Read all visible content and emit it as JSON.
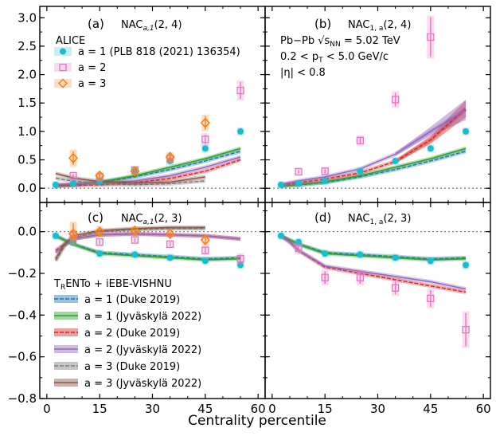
{
  "figure": {
    "xlabel": "Centrality percentile"
  },
  "panels_text": {
    "a": {
      "tag": "(a)",
      "obs_main": "NAC",
      "obs_sub": "a,1",
      "obs_args": "(2, 4)"
    },
    "b": {
      "tag": "(b)",
      "obs_main": "NAC",
      "obs_sub": "1, a",
      "obs_args": "(2, 4)",
      "info1a": "Pb−Pb ",
      "info1b": "√s",
      "info1c": "NN",
      "info1d": " = 5.02 TeV",
      "info2": "0.2 < p",
      "info2sub": "T",
      "info2b": " < 5.0 GeV/c",
      "info3": "|η| < 0.8"
    },
    "c": {
      "tag": "(c)",
      "obs_main": "NAC",
      "obs_sub": "a,1",
      "obs_args": "(2, 3)"
    },
    "d": {
      "tag": "(d)",
      "obs_main": "NAC",
      "obs_sub": "1, a",
      "obs_args": "(2, 3)"
    }
  },
  "legend_data": {
    "title": "ALICE",
    "entries": [
      {
        "label": "a = 1 (PLB 818 (2021) 136354)",
        "marker": "circle",
        "color": "#17becf"
      },
      {
        "label": "a = 2",
        "marker": "square",
        "color": "#e377c2"
      },
      {
        "label": "a = 3",
        "marker": "diamond",
        "color": "#ff7f0e"
      }
    ]
  },
  "legend_model": {
    "title_a": "T",
    "title_sub": "R",
    "title_b": "ENTo + iEBE-VISHNU",
    "entries": [
      {
        "label": "a = 1 (Duke 2019)",
        "color": "#1f77b4",
        "style": "dashed"
      },
      {
        "label": "a = 1 (Jyväskylä 2022)",
        "color": "#2ca02c",
        "style": "solid"
      },
      {
        "label": "a = 2 (Duke 2019)",
        "color": "#d62728",
        "style": "dashed"
      },
      {
        "label": "a = 2 (Jyväskylä 2022)",
        "color": "#9467bd",
        "style": "solid"
      },
      {
        "label": "a = 3 (Duke 2019)",
        "color": "#7f7f7f",
        "style": "dashed"
      },
      {
        "label": "a = 3 (Jyväskylä 2022)",
        "color": "#8c564b",
        "style": "solid"
      }
    ]
  },
  "colors": {
    "a1": "#17becf",
    "a2": "#e377c2",
    "a3": "#ff7f0e",
    "ref": "#808080"
  },
  "chart_data": [
    {
      "panel": "a",
      "type": "line+errorbar",
      "xlim": [
        -2,
        62
      ],
      "ylim": [
        -0.25,
        3.2
      ],
      "xticks": [
        0,
        15,
        30,
        45,
        60
      ],
      "yticks": [
        0.0,
        0.5,
        1.0,
        1.5,
        2.0,
        2.5,
        3.0
      ],
      "ytick_labels": [
        "0.0",
        "0.5",
        "1.0",
        "1.5",
        "2.0",
        "2.5",
        "3.0"
      ],
      "data_series": [
        {
          "name": "a = 1",
          "marker": "circle",
          "color": "#17becf",
          "x": [
            2.5,
            7.5,
            15,
            25,
            35,
            45,
            55
          ],
          "y": [
            0.06,
            0.08,
            0.13,
            0.3,
            0.48,
            0.7,
            1.0
          ],
          "err": [
            0.01,
            0.01,
            0.01,
            0.02,
            0.02,
            0.02,
            0.03
          ]
        },
        {
          "name": "a = 2",
          "marker": "square",
          "color": "#e377c2",
          "x": [
            7.5,
            15,
            25,
            35,
            45,
            55
          ],
          "y": [
            0.22,
            0.2,
            0.32,
            0.52,
            0.86,
            1.72
          ],
          "err": [
            0.03,
            0.03,
            0.03,
            0.05,
            0.08,
            0.15
          ]
        },
        {
          "name": "a = 3",
          "marker": "diamond",
          "color": "#ff7f0e",
          "x": [
            7.5,
            15,
            25,
            35,
            45
          ],
          "y": [
            0.53,
            0.22,
            0.3,
            0.55,
            1.15
          ],
          "err": [
            0.12,
            0.05,
            0.05,
            0.06,
            0.12
          ]
        }
      ],
      "model_series": [
        {
          "name": "a = 1 (Duke 2019)",
          "color": "#1f77b4",
          "style": "dashed",
          "x": [
            2.5,
            5,
            7.5,
            15,
            25,
            35,
            45,
            55
          ],
          "y": [
            0.04,
            0.05,
            0.06,
            0.1,
            0.2,
            0.33,
            0.48,
            0.65
          ]
        },
        {
          "name": "a = 1 (Jyväskylä 2022)",
          "color": "#2ca02c",
          "style": "solid",
          "x": [
            2.5,
            5,
            7.5,
            15,
            25,
            35,
            45,
            55
          ],
          "y": [
            0.04,
            0.05,
            0.06,
            0.11,
            0.22,
            0.37,
            0.52,
            0.7
          ]
        },
        {
          "name": "a = 2 (Duke 2019)",
          "color": "#d62728",
          "style": "dashed",
          "x": [
            2.5,
            5,
            7.5,
            15,
            25,
            35,
            45,
            55
          ],
          "y": [
            0.05,
            0.05,
            0.05,
            0.06,
            0.1,
            0.17,
            0.3,
            0.5
          ]
        },
        {
          "name": "a = 2 (Jyväskylä 2022)",
          "color": "#9467bd",
          "style": "solid",
          "x": [
            2.5,
            5,
            7.5,
            15,
            25,
            35,
            45,
            55
          ],
          "y": [
            0.07,
            0.07,
            0.08,
            0.09,
            0.13,
            0.22,
            0.37,
            0.55
          ]
        },
        {
          "name": "a = 3 (Duke 2019)",
          "color": "#7f7f7f",
          "style": "dashed",
          "x": [
            2.5,
            5,
            7.5,
            15,
            25,
            35,
            45
          ],
          "y": [
            0.18,
            0.15,
            0.13,
            0.08,
            0.06,
            0.08,
            0.13
          ]
        },
        {
          "name": "a = 3 (Jyväskylä 2022)",
          "color": "#8c564b",
          "style": "solid",
          "x": [
            2.5,
            5,
            7.5,
            15,
            25,
            35,
            45
          ],
          "y": [
            0.26,
            0.22,
            0.18,
            0.12,
            0.09,
            0.11,
            0.2
          ]
        }
      ]
    },
    {
      "panel": "b",
      "type": "line+errorbar",
      "xlim": [
        -2,
        62
      ],
      "ylim": [
        -0.25,
        3.2
      ],
      "xticks": [
        0,
        15,
        30,
        45,
        60
      ],
      "yticks": [
        0.0,
        0.5,
        1.0,
        1.5,
        2.0,
        2.5,
        3.0
      ],
      "data_series": [
        {
          "name": "a = 1",
          "marker": "circle",
          "color": "#17becf",
          "x": [
            2.5,
            7.5,
            15,
            25,
            35,
            45,
            55
          ],
          "y": [
            0.06,
            0.08,
            0.13,
            0.3,
            0.48,
            0.7,
            1.0
          ],
          "err": [
            0.01,
            0.01,
            0.01,
            0.02,
            0.02,
            0.02,
            0.03
          ]
        },
        {
          "name": "a = 2",
          "marker": "square",
          "color": "#e377c2",
          "x": [
            7.5,
            15,
            25,
            35,
            45
          ],
          "y": [
            0.29,
            0.3,
            0.84,
            1.56,
            2.66
          ],
          "err": [
            0.03,
            0.04,
            0.06,
            0.12,
            0.35
          ]
        }
      ],
      "model_series": [
        {
          "name": "a = 1 (Duke 2019)",
          "color": "#1f77b4",
          "style": "dashed",
          "x": [
            2.5,
            5,
            7.5,
            15,
            25,
            35,
            45,
            55
          ],
          "y": [
            0.04,
            0.05,
            0.06,
            0.1,
            0.2,
            0.33,
            0.48,
            0.65
          ]
        },
        {
          "name": "a = 1 (Jyväskylä 2022)",
          "color": "#2ca02c",
          "style": "solid",
          "x": [
            2.5,
            5,
            7.5,
            15,
            25,
            35,
            45,
            55
          ],
          "y": [
            0.04,
            0.05,
            0.06,
            0.11,
            0.22,
            0.37,
            0.52,
            0.7
          ]
        },
        {
          "name": "a = 2 (Duke 2019)",
          "color": "#d62728",
          "style": "dashed",
          "x": [
            2.5,
            5,
            7.5,
            15,
            25,
            35,
            45,
            55
          ],
          "y": [
            0.06,
            0.08,
            0.1,
            0.16,
            0.27,
            0.47,
            0.85,
            1.4
          ]
        },
        {
          "name": "a = 2 (Jyväskylä 2022)",
          "color": "#9467bd",
          "style": "solid",
          "x": [
            2.5,
            5,
            7.5,
            15,
            25,
            35,
            45,
            55
          ],
          "y": [
            0.06,
            0.1,
            0.13,
            0.2,
            0.34,
            0.6,
            1.0,
            1.38
          ]
        }
      ],
      "bands": [
        {
          "name": "a = 2 (Duke 2019) band",
          "color": "#d62728",
          "x": [
            35,
            45,
            55
          ],
          "lo": [
            0.44,
            0.78,
            1.25
          ],
          "hi": [
            0.5,
            0.92,
            1.55
          ]
        },
        {
          "name": "a = 2 (Jyväskylä 2022) band",
          "color": "#9467bd",
          "x": [
            35,
            45,
            55
          ],
          "lo": [
            0.57,
            0.92,
            1.2
          ],
          "hi": [
            0.63,
            1.08,
            1.56
          ]
        }
      ]
    },
    {
      "panel": "c",
      "type": "line+errorbar",
      "xlim": [
        -2,
        62
      ],
      "ylim": [
        -0.8,
        0.14
      ],
      "xticks": [
        0,
        15,
        30,
        45,
        60
      ],
      "yticks": [
        -0.8,
        -0.6,
        -0.4,
        -0.2,
        0.0
      ],
      "ytick_labels": [
        "−0.8",
        "−0.6",
        "−0.4",
        "−0.2",
        "0.0"
      ],
      "data_series": [
        {
          "name": "a = 1",
          "marker": "circle",
          "color": "#17becf",
          "x": [
            2.5,
            7.5,
            15,
            25,
            35,
            45,
            55
          ],
          "y": [
            -0.02,
            -0.05,
            -0.105,
            -0.11,
            -0.125,
            -0.14,
            -0.16
          ],
          "err": [
            0.005,
            0.005,
            0.005,
            0.005,
            0.005,
            0.006,
            0.008
          ]
        },
        {
          "name": "a = 2",
          "marker": "square",
          "color": "#e377c2",
          "x": [
            7.5,
            15,
            25,
            35,
            45,
            55
          ],
          "y": [
            -0.02,
            -0.05,
            -0.04,
            -0.06,
            -0.09,
            -0.13
          ],
          "err": [
            0.02,
            0.01,
            0.01,
            0.01,
            0.015,
            0.02
          ]
        },
        {
          "name": "a = 3",
          "marker": "diamond",
          "color": "#ff7f0e",
          "x": [
            7.5,
            15,
            25,
            35,
            45
          ],
          "y": [
            -0.01,
            0.0,
            0.005,
            -0.01,
            -0.04
          ],
          "err": [
            0.05,
            0.02,
            0.01,
            0.01,
            0.02
          ]
        }
      ],
      "model_series": [
        {
          "name": "a = 1 (Duke 2019)",
          "color": "#1f77b4",
          "style": "dashed",
          "x": [
            2.5,
            5,
            7.5,
            15,
            25,
            35,
            45,
            55
          ],
          "y": [
            -0.02,
            -0.04,
            -0.06,
            -0.1,
            -0.11,
            -0.12,
            -0.13,
            -0.125
          ]
        },
        {
          "name": "a = 1 (Jyväskylä 2022)",
          "color": "#2ca02c",
          "style": "solid",
          "x": [
            2.5,
            5,
            7.5,
            15,
            25,
            35,
            45,
            55
          ],
          "y": [
            -0.02,
            -0.04,
            -0.06,
            -0.105,
            -0.115,
            -0.125,
            -0.135,
            -0.13
          ]
        },
        {
          "name": "a = 2 (Duke 2019)",
          "color": "#d62728",
          "style": "dashed",
          "x": [
            2.5,
            5,
            7.5,
            15,
            25,
            35,
            45,
            55
          ],
          "y": [
            -0.09,
            -0.06,
            -0.035,
            -0.015,
            -0.01,
            -0.015,
            -0.02,
            -0.035
          ]
        },
        {
          "name": "a = 2 (Jyväskylä 2022)",
          "color": "#9467bd",
          "style": "solid",
          "x": [
            2.5,
            5,
            7.5,
            15,
            25,
            35,
            45,
            55
          ],
          "y": [
            -0.1,
            -0.065,
            -0.035,
            -0.015,
            -0.012,
            -0.015,
            -0.02,
            -0.035
          ]
        },
        {
          "name": "a = 3 (Duke 2019)",
          "color": "#7f7f7f",
          "style": "dashed",
          "x": [
            2.5,
            5,
            7.5,
            15,
            25,
            35,
            45
          ],
          "y": [
            -0.14,
            -0.07,
            -0.03,
            0.0,
            0.01,
            0.015,
            0.015
          ]
        },
        {
          "name": "a = 3 (Jyväskylä 2022)",
          "color": "#8c564b",
          "style": "solid",
          "x": [
            2.5,
            5,
            7.5,
            15,
            25,
            35,
            45
          ],
          "y": [
            -0.13,
            -0.06,
            -0.02,
            0.005,
            0.015,
            0.02,
            0.02
          ]
        }
      ]
    },
    {
      "panel": "d",
      "type": "line+errorbar",
      "xlim": [
        -2,
        62
      ],
      "ylim": [
        -0.8,
        0.14
      ],
      "xticks": [
        0,
        15,
        30,
        45,
        60
      ],
      "yticks": [
        -0.8,
        -0.6,
        -0.4,
        -0.2,
        0.0
      ],
      "data_series": [
        {
          "name": "a = 1",
          "marker": "circle",
          "color": "#17becf",
          "x": [
            2.5,
            7.5,
            15,
            25,
            35,
            45,
            55
          ],
          "y": [
            -0.02,
            -0.05,
            -0.105,
            -0.11,
            -0.125,
            -0.14,
            -0.16
          ],
          "err": [
            0.005,
            0.005,
            0.005,
            0.005,
            0.005,
            0.006,
            0.008
          ]
        },
        {
          "name": "a = 2",
          "marker": "square",
          "color": "#e377c2",
          "x": [
            7.5,
            15,
            25,
            35,
            45,
            55
          ],
          "y": [
            -0.08,
            -0.22,
            -0.22,
            -0.27,
            -0.32,
            -0.47
          ],
          "err": [
            0.02,
            0.03,
            0.03,
            0.03,
            0.04,
            0.08
          ]
        }
      ],
      "model_series": [
        {
          "name": "a = 1 (Duke 2019)",
          "color": "#1f77b4",
          "style": "dashed",
          "x": [
            2.5,
            5,
            7.5,
            15,
            25,
            35,
            45,
            55
          ],
          "y": [
            -0.02,
            -0.04,
            -0.06,
            -0.1,
            -0.11,
            -0.12,
            -0.13,
            -0.125
          ]
        },
        {
          "name": "a = 1 (Jyväskylä 2022)",
          "color": "#2ca02c",
          "style": "solid",
          "x": [
            2.5,
            5,
            7.5,
            15,
            25,
            35,
            45,
            55
          ],
          "y": [
            -0.02,
            -0.04,
            -0.06,
            -0.105,
            -0.115,
            -0.125,
            -0.135,
            -0.13
          ]
        },
        {
          "name": "a = 2 (Duke 2019)",
          "color": "#d62728",
          "style": "dashed",
          "x": [
            2.5,
            5,
            7.5,
            15,
            25,
            35,
            45,
            55
          ],
          "y": [
            -0.02,
            -0.05,
            -0.09,
            -0.17,
            -0.2,
            -0.23,
            -0.26,
            -0.29
          ]
        },
        {
          "name": "a = 2 (Jyväskylä 2022)",
          "color": "#9467bd",
          "style": "solid",
          "x": [
            2.5,
            5,
            7.5,
            15,
            25,
            35,
            45,
            55
          ],
          "y": [
            -0.02,
            -0.05,
            -0.09,
            -0.165,
            -0.19,
            -0.215,
            -0.24,
            -0.275
          ]
        }
      ]
    }
  ]
}
